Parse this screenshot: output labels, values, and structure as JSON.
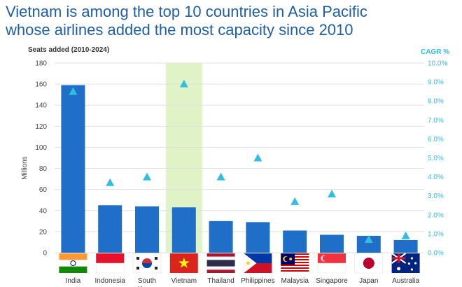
{
  "title_line1": "Vietnam is among the top 10 countries in Asia Pacific",
  "title_line2": "whose airlines added the most capacity since 2010",
  "colors": {
    "title": "#1f5fa6",
    "bar": "#1f6ec8",
    "marker": "#33bde0",
    "highlight": "#dff3c7",
    "grid": "#e0e0e0"
  },
  "chart_data": {
    "type": "bar",
    "title": "Vietnam is among the top 10 countries in Asia Pacific whose airlines added the most capacity since 2010",
    "left_axis_title": "Seats added (2010-2024)",
    "right_axis_title": "CAGR %",
    "ylabel": "Millions",
    "ylim": [
      0,
      180
    ],
    "y_ticks": [
      "0",
      "20",
      "40",
      "60",
      "80",
      "100",
      "120",
      "140",
      "160",
      "180"
    ],
    "y2lim": [
      0,
      10
    ],
    "y2_ticks": [
      "0.0%",
      "1.0%",
      "2.0%",
      "3.0%",
      "4.0%",
      "5.0%",
      "6.0%",
      "7.0%",
      "8.0%",
      "9.0%",
      "10.0%"
    ],
    "categories": [
      "India",
      "Indonesia",
      "South Korea",
      "Vietnam",
      "Thailand",
      "Philippines",
      "Malaysia",
      "Singapore",
      "Japan",
      "Australia"
    ],
    "series": [
      {
        "name": "Seats added (2010-2024)",
        "kind": "bar",
        "axis": "left",
        "values": [
          159,
          45,
          44,
          43,
          30,
          29,
          21,
          17,
          16,
          12
        ]
      },
      {
        "name": "CAGR %",
        "kind": "marker",
        "axis": "right",
        "values": [
          8.5,
          3.7,
          4.0,
          8.9,
          4.0,
          5.0,
          2.7,
          3.1,
          0.7,
          0.9
        ]
      }
    ],
    "highlight_category": "Vietnam",
    "grid": true
  }
}
